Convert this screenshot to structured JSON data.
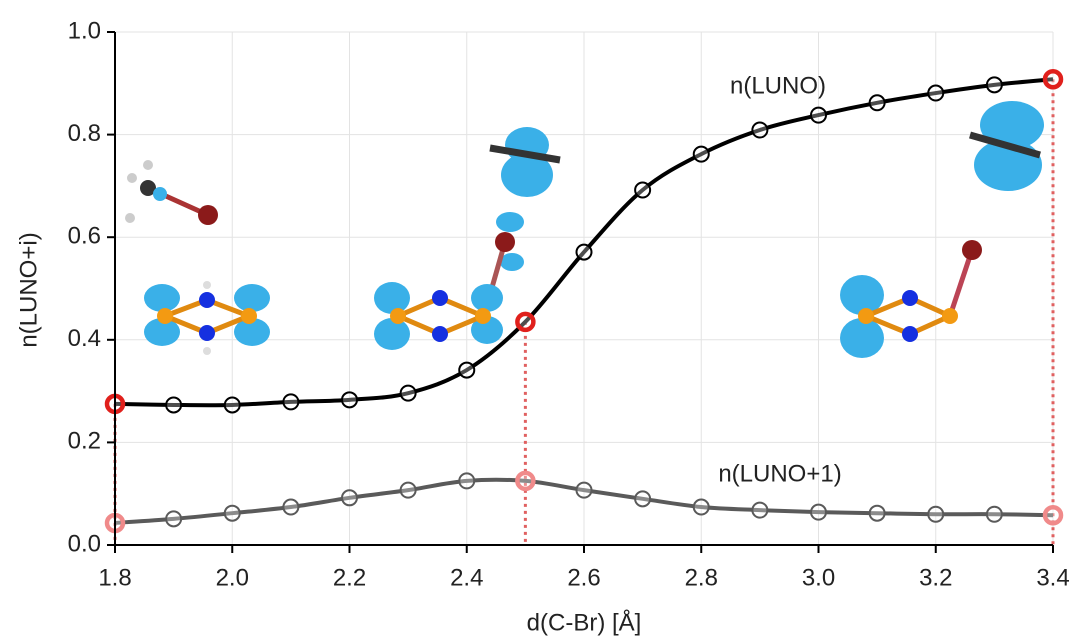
{
  "chart_data": {
    "type": "line",
    "x_label": "d(C-Br) [Å]",
    "y_label": "n(LUNO+i)",
    "x": [
      1.8,
      1.9,
      2.0,
      2.1,
      2.2,
      2.3,
      2.4,
      2.5,
      2.6,
      2.7,
      2.8,
      2.9,
      3.0,
      3.1,
      3.2,
      3.3,
      3.4
    ],
    "series": [
      {
        "name": "n(LUNO)",
        "color": "#000000",
        "highlight_color": "#e0201c",
        "values": [
          0.275,
          0.273,
          0.273,
          0.279,
          0.283,
          0.296,
          0.341,
          0.435,
          0.571,
          0.692,
          0.762,
          0.809,
          0.838,
          0.862,
          0.881,
          0.897,
          0.908
        ]
      },
      {
        "name": "n(LUNO+1)",
        "color": "#5a5a5a",
        "highlight_color": "#f08a8a",
        "values": [
          0.043,
          0.051,
          0.062,
          0.074,
          0.092,
          0.107,
          0.125,
          0.125,
          0.107,
          0.09,
          0.074,
          0.068,
          0.064,
          0.062,
          0.06,
          0.06,
          0.058
        ]
      }
    ],
    "highlight_x": [
      1.8,
      2.5,
      3.4
    ],
    "xlim": [
      1.8,
      3.4
    ],
    "xticks": [
      {
        "value": 1.8,
        "label": "1.8"
      },
      {
        "value": 2,
        "label": "2.0"
      },
      2.2,
      2.4,
      2.6,
      2.8,
      {
        "value": 3,
        "label": "3.0"
      },
      3.2,
      3.4
    ],
    "ylim": [
      0,
      1
    ],
    "yticks": [
      {
        "value": 0,
        "label": "0.0"
      },
      0.2,
      0.4,
      0.6,
      0.8,
      {
        "value": 1,
        "label": "1.0"
      }
    ],
    "grid": true
  }
}
